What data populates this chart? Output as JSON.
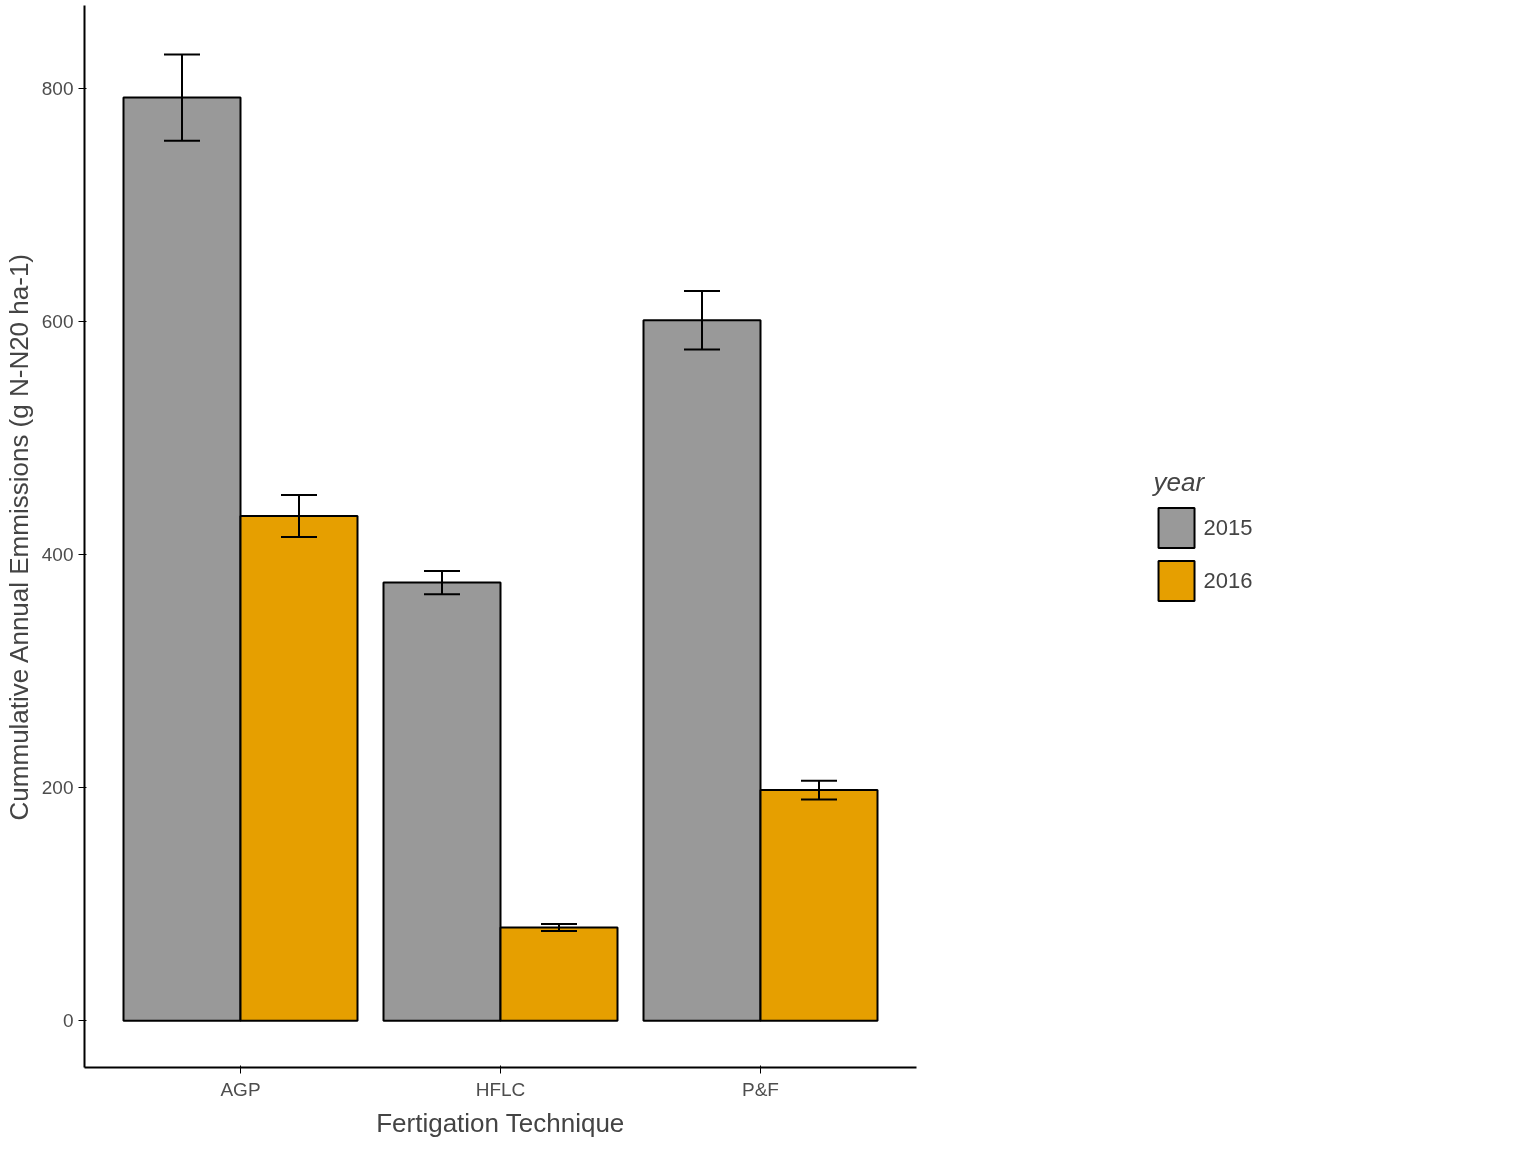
{
  "chart_data": {
    "type": "bar",
    "xlabel": "Fertigation Technique",
    "ylabel": "Cummulative Annual Emmissions (g N-N20 ha-1)",
    "legend_title": "year",
    "categories": [
      "AGP",
      "HFLC",
      "P&F"
    ],
    "series": [
      {
        "name": "2015",
        "color": "#999999",
        "values": [
          792,
          376,
          601
        ],
        "errors": [
          37,
          10,
          25
        ]
      },
      {
        "name": "2016",
        "color": "#e69f00",
        "values": [
          433,
          80,
          198
        ],
        "errors": [
          18,
          3,
          8
        ]
      }
    ],
    "ylim": [
      -40,
      871
    ],
    "yticks": [
      0,
      200,
      400,
      600,
      800
    ],
    "grid": false,
    "legend": "right"
  }
}
